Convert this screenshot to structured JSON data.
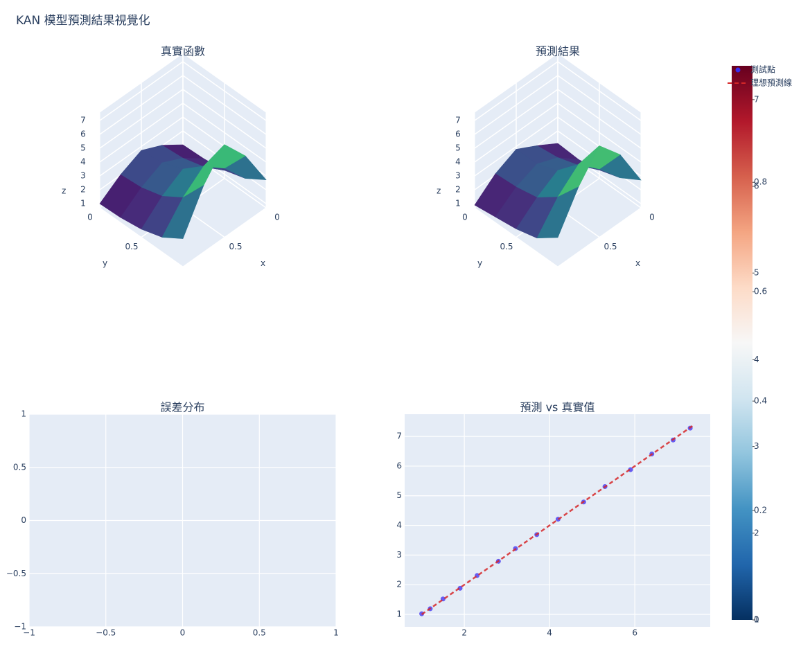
{
  "title": "KAN 模型預測結果視覺化",
  "chart_data": [
    {
      "type": "surface",
      "title": "真實函數",
      "xlabel": "x",
      "ylabel": "y",
      "zlabel": "z",
      "x": [
        0,
        0.25,
        0.5,
        0.75,
        1
      ],
      "y": [
        0,
        0.25,
        0.5,
        0.75,
        1
      ],
      "z": [
        [
          1,
          2.03,
          2.72,
          2.03,
          1
        ],
        [
          1.06,
          2.16,
          2.89,
          2.16,
          1.06
        ],
        [
          1.28,
          2.6,
          3.49,
          2.6,
          1.28
        ],
        [
          1.76,
          3.56,
          4.77,
          3.56,
          1.76
        ],
        [
          2.72,
          5.51,
          7.39,
          5.51,
          2.72
        ]
      ],
      "xlim": [
        0,
        1
      ],
      "ylim": [
        0,
        1
      ],
      "zlim": [
        0.7,
        7.6
      ],
      "xticks": [
        0,
        0.5
      ],
      "yticks": [
        0,
        0.5
      ],
      "zticks": [
        1,
        2,
        3,
        4,
        5,
        6,
        7
      ],
      "colorscale": "Viridis"
    },
    {
      "type": "surface",
      "title": "預測結果",
      "xlabel": "x",
      "ylabel": "y",
      "zlabel": "z",
      "x": [
        0,
        0.25,
        0.5,
        0.75,
        1
      ],
      "y": [
        0,
        0.25,
        0.5,
        0.75,
        1
      ],
      "z": [
        [
          1.1,
          2.0,
          2.8,
          2.1,
          0.9
        ],
        [
          1.0,
          2.2,
          2.8,
          2.2,
          1.1
        ],
        [
          1.3,
          2.7,
          3.4,
          2.5,
          1.3
        ],
        [
          1.8,
          3.5,
          4.9,
          3.6,
          1.7
        ],
        [
          2.7,
          5.6,
          7.3,
          5.4,
          2.8
        ]
      ],
      "xlim": [
        0,
        1
      ],
      "ylim": [
        0,
        1
      ],
      "zlim": [
        0.7,
        7.6
      ],
      "xticks": [
        0,
        0.5
      ],
      "yticks": [
        0,
        0.5
      ],
      "zticks": [
        1,
        2,
        3,
        4,
        5,
        6,
        7
      ],
      "colorscale": "Viridis"
    },
    {
      "type": "scatter",
      "title": "誤差分布",
      "xlim": [
        -1,
        1
      ],
      "ylim": [
        -1,
        1
      ],
      "grid": true,
      "xticks": [
        {
          "value": -1,
          "label": "−1"
        },
        {
          "value": -0.5,
          "label": "−0.5"
        },
        0,
        0.5,
        1
      ],
      "yticks": [
        {
          "value": -1,
          "label": "−1"
        },
        {
          "value": -0.5,
          "label": "−0.5"
        },
        0,
        0.5,
        1
      ]
    },
    {
      "type": "scatter",
      "title": "預測 vs 真實值",
      "xlim": [
        0.6,
        7.77
      ],
      "ylim": [
        0.58,
        7.75
      ],
      "grid": true,
      "xticks": [
        2,
        4,
        6
      ],
      "yticks": [
        1,
        2,
        3,
        4,
        5,
        6,
        7
      ],
      "legend": "top-right",
      "series": [
        {
          "name": "測試點",
          "mode": "markers",
          "color": "#3a2cf0",
          "x": [
            1.0,
            1.2,
            1.5,
            1.9,
            2.3,
            2.8,
            3.2,
            3.7,
            4.2,
            4.8,
            5.3,
            5.9,
            6.4,
            6.9,
            7.3
          ],
          "y": [
            1.02,
            1.19,
            1.52,
            1.88,
            2.31,
            2.79,
            3.22,
            3.69,
            4.21,
            4.79,
            5.31,
            5.88,
            6.41,
            6.88,
            7.28
          ]
        },
        {
          "name": "理想預測線",
          "mode": "line",
          "dash": true,
          "color": "#d62728",
          "x": [
            1,
            7.39
          ],
          "y": [
            1,
            7.39
          ]
        }
      ],
      "colorbar": {
        "colorscale": "RdBu",
        "scales": [
          {
            "lim": [
              0,
              1.013
            ],
            "ticks": [
              0,
              0.2,
              0.4,
              0.6,
              0.8
            ]
          },
          {
            "lim": [
              1,
              7.39
            ],
            "ticks": [
              1,
              2,
              3,
              4,
              5,
              6,
              7
            ]
          }
        ]
      }
    }
  ]
}
